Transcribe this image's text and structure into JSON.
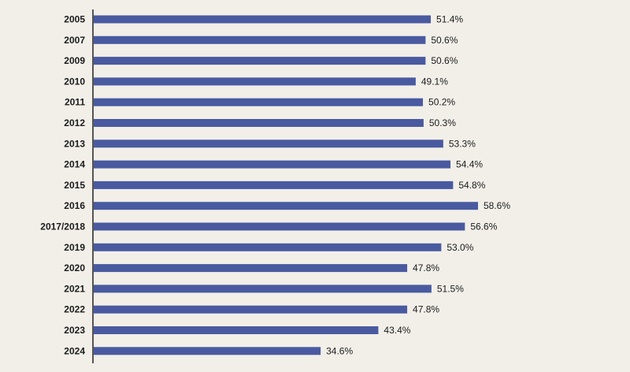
{
  "chart_data": {
    "type": "bar",
    "orientation": "horizontal",
    "categories": [
      "2005",
      "2007",
      "2009",
      "2010",
      "2011",
      "2012",
      "2013",
      "2014",
      "2015",
      "2016",
      "2017/2018",
      "2019",
      "2020",
      "2021",
      "2022",
      "2023",
      "2024"
    ],
    "values": [
      51.4,
      50.6,
      50.6,
      49.1,
      50.2,
      50.3,
      53.3,
      54.4,
      54.8,
      58.6,
      56.6,
      53.0,
      47.8,
      51.5,
      47.8,
      43.4,
      34.6
    ],
    "value_labels": [
      "51.4%",
      "50.6%",
      "50.6%",
      "49.1%",
      "50.2%",
      "50.3%",
      "53.3%",
      "54.4%",
      "54.8%",
      "58.6%",
      "56.6%",
      "53.0%",
      "47.8%",
      "51.5%",
      "47.8%",
      "43.4%",
      "34.6%"
    ],
    "title": "",
    "xlabel": "",
    "ylabel": "",
    "xlim": [
      0,
      60
    ],
    "grid": false,
    "bar_color": "#4a5aa0",
    "axis_color": "#222222"
  }
}
